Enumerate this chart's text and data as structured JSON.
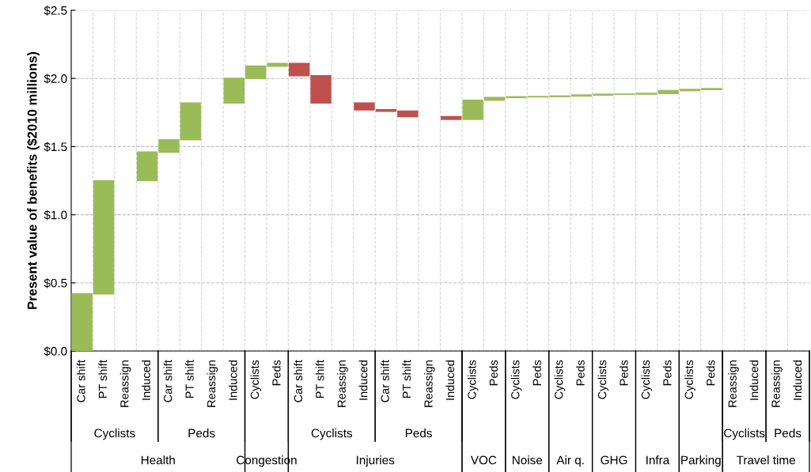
{
  "chart_data": {
    "type": "bar",
    "ylabel": "Present value of benefits ($2010 millions)",
    "categories": [
      "Car shift",
      "PT shift",
      "Reassign",
      "Induced",
      "Car shift",
      "PT shift",
      "Reassign",
      "Induced",
      "Cyclists",
      "Peds",
      "Car shift",
      "PT shift",
      "Reassign",
      "Induced",
      "Car shift",
      "PT shift",
      "Reassign",
      "Induced",
      "Cyclists",
      "Peds",
      "Cyclists",
      "Peds",
      "Cyclists",
      "Peds",
      "Cyclists",
      "Peds",
      "Cyclists",
      "Peds",
      "Cyclists",
      "Peds",
      "Reassign",
      "Induced",
      "Reassign",
      "Induced"
    ],
    "values": [
      0.42,
      0.83,
      null,
      0.21,
      0.09,
      0.27,
      null,
      0.18,
      0.09,
      0.02,
      -0.09,
      -0.2,
      null,
      -0.05,
      -0.01,
      -0.04,
      null,
      -0.02,
      0.14,
      0.02,
      0.005,
      0.002,
      0.004,
      0.007,
      0.006,
      0.001,
      0.005,
      0.021,
      0.008,
      0.006,
      null,
      null,
      null,
      null
    ],
    "base": [
      0,
      0.42,
      null,
      1.25,
      1.46,
      1.55,
      null,
      1.82,
      2.0,
      2.09,
      2.11,
      2.02,
      null,
      1.82,
      1.77,
      1.76,
      null,
      1.72,
      1.7,
      1.84,
      1.86,
      1.865,
      1.867,
      1.871,
      1.878,
      1.884,
      1.885,
      1.89,
      1.911,
      1.919,
      null,
      null,
      null,
      null
    ],
    "colors": [
      "#9bbb59",
      "#9bbb59",
      "#9bbb59",
      "#9bbb59",
      "#9bbb59",
      "#9bbb59",
      "#9bbb59",
      "#9bbb59",
      "#9bbb59",
      "#9bbb59",
      "#c0504d",
      "#c0504d",
      "#c0504d",
      "#c0504d",
      "#c0504d",
      "#c0504d",
      "#c0504d",
      "#c0504d",
      "#9bbb59",
      "#9bbb59",
      "#9bbb59",
      "#9bbb59",
      "#9bbb59",
      "#9bbb59",
      "#9bbb59",
      "#9bbb59",
      "#9bbb59",
      "#9bbb59",
      "#9bbb59",
      "#9bbb59",
      "#9bbb59",
      "#9bbb59",
      "#9bbb59",
      "#9bbb59"
    ],
    "ylim": [
      0,
      2.5
    ],
    "yticks": [
      {
        "value": 0,
        "label": "$0.0"
      },
      {
        "value": 0.5,
        "label": "$0.5"
      },
      {
        "value": 1.0,
        "label": "$1.0"
      },
      {
        "value": 1.5,
        "label": "$1.5"
      },
      {
        "value": 2.0,
        "label": "$2.0"
      },
      {
        "value": 2.5,
        "label": "$2.5"
      }
    ],
    "grid": true,
    "annotations": [
      "Cyclists",
      "Peds",
      "Cyclists",
      "Peds",
      "Cyclists",
      "Peds",
      "Health",
      "Congestion",
      "Injuries",
      "VOC",
      "Noise",
      "Air q.",
      "GHG",
      "Infra",
      "Parking",
      "Travel time"
    ]
  }
}
